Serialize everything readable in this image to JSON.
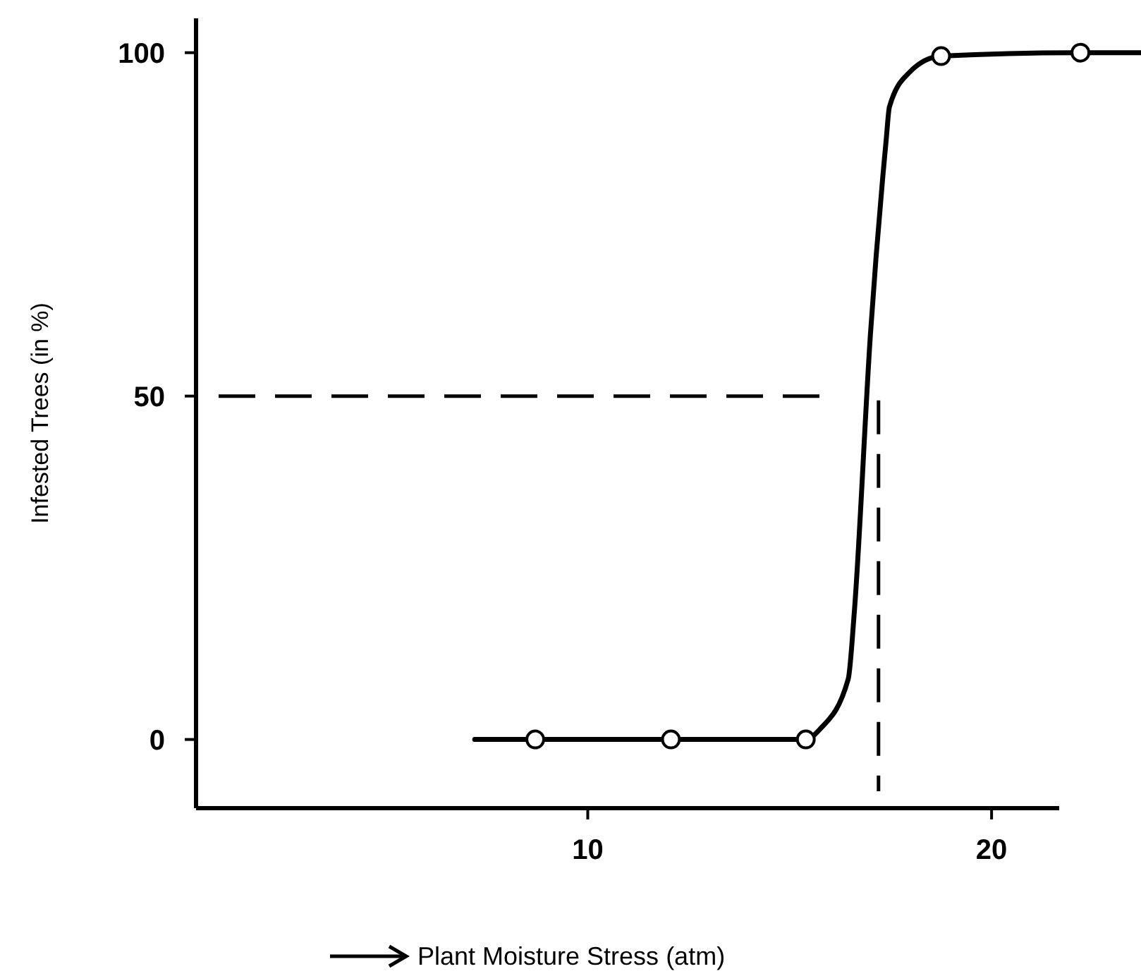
{
  "chart_data": {
    "type": "line",
    "xlabel": "Plant Moisture Stress (atm)",
    "ylabel": "Infested Trees (in %)",
    "xlim": [
      0.3,
      23.7
    ],
    "ylim": [
      -10,
      105
    ],
    "xticks": [
      10,
      20
    ],
    "yticks": [
      0,
      50,
      100
    ],
    "grid": false,
    "series": [
      {
        "color": "#000000",
        "marker": "none",
        "line_style": "solid",
        "x": [
          7.2,
          8.7,
          12.06,
          15.4,
          15.75,
          16.45,
          16.6,
          17.0,
          17.39,
          17.47,
          17.96,
          18.75,
          22.2,
          23.7
        ],
        "values": [
          0,
          0,
          0,
          0,
          1.5,
          8.8,
          18.5,
          59,
          87.3,
          92.1,
          97.1,
          99.5,
          100,
          100
        ]
      },
      {
        "type": "scatter",
        "color": "#000000",
        "marker": "circle",
        "x": [
          8.7,
          12.06,
          15.4,
          18.75,
          22.2
        ],
        "values": [
          0,
          0,
          0,
          99.5,
          100
        ]
      }
    ],
    "ref_lines": [
      {
        "axis": "y",
        "value": 50,
        "line_style": "dashed",
        "color": "#000000"
      },
      {
        "axis": "x",
        "value": 17.2,
        "line_style": "dashed",
        "color": "#000000"
      }
    ]
  }
}
